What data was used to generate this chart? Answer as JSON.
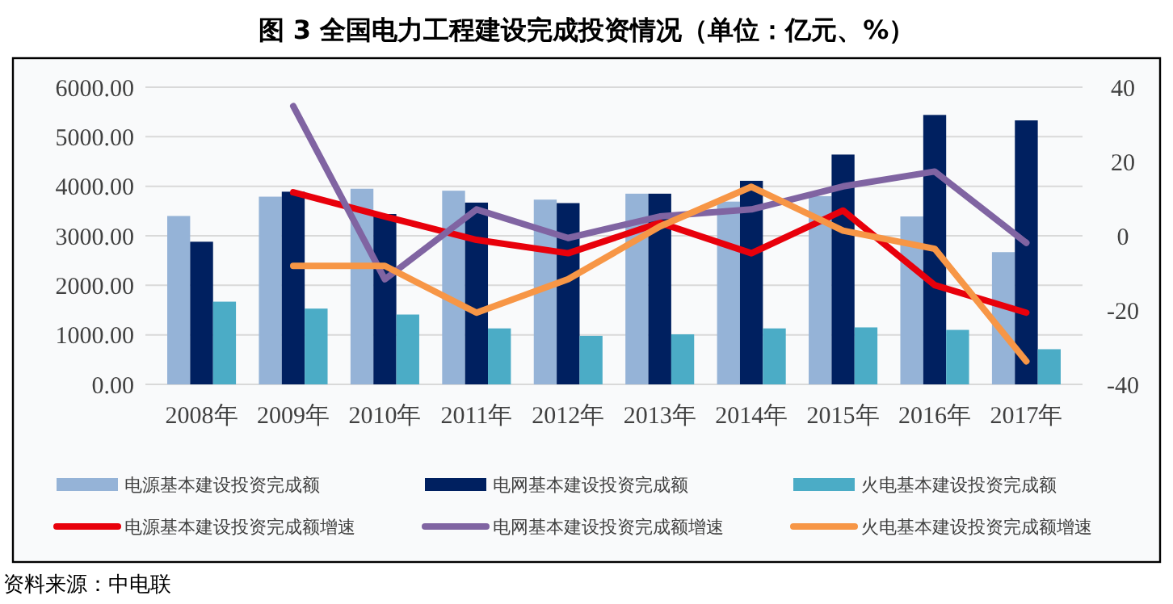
{
  "chart_data": {
    "type": "bar",
    "title": "图 3   全国电力工程建设完成投资情况（单位：亿元、%）",
    "annotations": [
      "资料来源：中电联"
    ],
    "categories": [
      "2008年",
      "2009年",
      "2010年",
      "2011年",
      "2012年",
      "2013年",
      "2014年",
      "2015年",
      "2016年",
      "2017年"
    ],
    "series": [
      {
        "name": "电源基本建设投资完成额",
        "color": "#95b3d7",
        "values": [
          3400,
          3790,
          3950,
          3910,
          3730,
          3850,
          3690,
          3800,
          3390,
          2670
        ]
      },
      {
        "name": "电网基本建设投资完成额",
        "color": "#002060",
        "values": [
          2880,
          3890,
          3440,
          3670,
          3660,
          3850,
          4110,
          4640,
          5440,
          5330
        ]
      },
      {
        "name": "火电基本建设投资完成额",
        "color": "#4bacc6",
        "values": [
          1670,
          1530,
          1410,
          1130,
          980,
          1010,
          1130,
          1150,
          1100,
          710
        ]
      },
      {
        "name": "电源基本建设投资完成额增速",
        "type": "line",
        "axis": "y2",
        "color": "#e8000b",
        "values": [
          null,
          11.7,
          5.2,
          -1.1,
          -4.7,
          3.5,
          -4.7,
          6.8,
          -13.3,
          -20.7
        ]
      },
      {
        "name": "电网基本建设投资完成额增速",
        "type": "line",
        "axis": "y2",
        "color": "#8064a2",
        "values": [
          null,
          34.9,
          -11.7,
          7.1,
          -0.6,
          5.2,
          7.1,
          13.3,
          17.3,
          -1.9
        ]
      },
      {
        "name": "火电基本建设投资完成额增速",
        "type": "line",
        "axis": "y2",
        "color": "#f79646",
        "values": [
          null,
          -8.1,
          -8.1,
          -20.7,
          -11.7,
          2.5,
          13.2,
          1.4,
          -3.5,
          -33.8
        ]
      }
    ],
    "ylim": [
      0,
      6000
    ],
    "yticks": [
      {
        "value": 0,
        "label": "0.00"
      },
      {
        "value": 1000,
        "label": "1000.00"
      },
      {
        "value": 2000,
        "label": "2000.00"
      },
      {
        "value": 3000,
        "label": "3000.00"
      },
      {
        "value": 4000,
        "label": "4000.00"
      },
      {
        "value": 5000,
        "label": "5000.00"
      },
      {
        "value": 6000,
        "label": "6000.00"
      }
    ],
    "y2lim": [
      -40,
      40
    ],
    "y2ticks": [
      -40,
      -20,
      0,
      20,
      40
    ],
    "grid": "y",
    "legend": "bottom",
    "marker": "none",
    "line_style": "solid"
  }
}
